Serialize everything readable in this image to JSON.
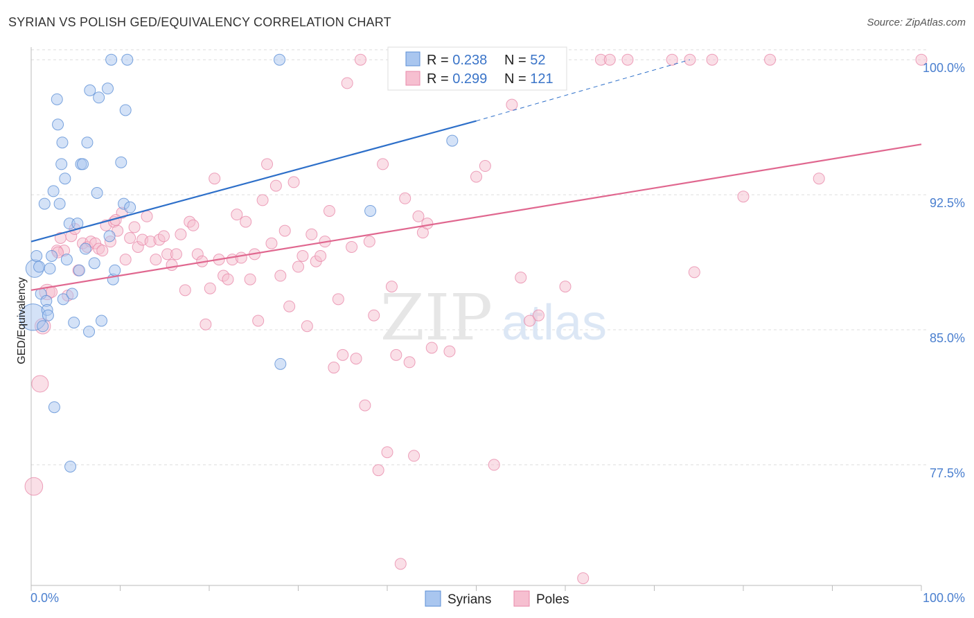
{
  "title": "SYRIAN VS POLISH GED/EQUIVALENCY CORRELATION CHART",
  "source": "Source: ZipAtlas.com",
  "watermark": {
    "zip": "ZIP",
    "atlas": "atlas"
  },
  "colors": {
    "syrians_fill": "#a9c6ef",
    "syrians_stroke": "#5b8fd6",
    "syrians_line": "#2d6fc9",
    "poles_fill": "#f6bfd0",
    "poles_stroke": "#e88aaa",
    "poles_line": "#e0678f",
    "grid": "#dddddd",
    "tick_label": "#4a7fcf"
  },
  "legend": {
    "rows": [
      {
        "r_label": "R = ",
        "r_value": "0.238",
        "n_label": "N = ",
        "n_value": "52"
      },
      {
        "r_label": "R = ",
        "r_value": "0.299",
        "n_label": "N = ",
        "n_value": "121"
      }
    ]
  },
  "bottom_legend": [
    "Syrians",
    "Poles"
  ],
  "chart_data": {
    "type": "scatter",
    "title": "SYRIAN VS POLISH GED/EQUIVALENCY CORRELATION CHART",
    "xlabel": "",
    "ylabel": "GED/Equivalency",
    "xlim": [
      0,
      100
    ],
    "ylim": [
      70.8,
      100.7
    ],
    "x_tick_labels": [
      "0.0%",
      "100.0%"
    ],
    "y_ticks": [
      77.5,
      85.0,
      92.5,
      100.0
    ],
    "y_tick_labels": [
      "77.5%",
      "85.0%",
      "92.5%",
      "100.0%"
    ],
    "grid": true,
    "legend_position": "top-center",
    "series": [
      {
        "name": "Syrians",
        "R": 0.238,
        "N": 52,
        "trend": {
          "x0": 0,
          "y0": 89.9,
          "x1": 50,
          "y1": 96.6,
          "dashed_to_x": 74,
          "dashed_to_y": 100.0
        },
        "points": [
          [
            0.2,
            85.7,
            2.4
          ],
          [
            0.4,
            88.4,
            1.6
          ],
          [
            0.6,
            89.1,
            1.0
          ],
          [
            0.9,
            88.5,
            1.0
          ],
          [
            1.1,
            87.0,
            1.0
          ],
          [
            1.3,
            85.2,
            1.0
          ],
          [
            1.5,
            92.0,
            1.0
          ],
          [
            1.7,
            86.6,
            1.0
          ],
          [
            1.8,
            86.1,
            1.0
          ],
          [
            2.1,
            88.4,
            1.0
          ],
          [
            2.3,
            89.1,
            1.0
          ],
          [
            2.5,
            92.7,
            1.0
          ],
          [
            2.6,
            80.7,
            1.0
          ],
          [
            2.9,
            97.8,
            1.0
          ],
          [
            3.0,
            96.4,
            1.0
          ],
          [
            3.2,
            92.0,
            1.0
          ],
          [
            3.4,
            94.2,
            1.0
          ],
          [
            3.5,
            95.4,
            1.0
          ],
          [
            3.6,
            86.7,
            1.0
          ],
          [
            3.8,
            93.4,
            1.0
          ],
          [
            4.0,
            88.9,
            1.0
          ],
          [
            4.3,
            90.9,
            1.0
          ],
          [
            4.4,
            77.4,
            1.0
          ],
          [
            4.6,
            87.0,
            1.0
          ],
          [
            4.8,
            85.4,
            1.0
          ],
          [
            5.2,
            90.9,
            1.0
          ],
          [
            5.4,
            88.3,
            1.0
          ],
          [
            5.6,
            94.2,
            1.0
          ],
          [
            5.8,
            94.2,
            1.0
          ],
          [
            6.1,
            89.5,
            1.0
          ],
          [
            6.3,
            95.4,
            1.0
          ],
          [
            6.5,
            84.9,
            1.0
          ],
          [
            6.6,
            98.3,
            1.0
          ],
          [
            7.1,
            88.7,
            1.0
          ],
          [
            7.4,
            92.6,
            1.0
          ],
          [
            7.6,
            97.9,
            1.0
          ],
          [
            7.9,
            85.5,
            1.0
          ],
          [
            8.6,
            98.4,
            1.0
          ],
          [
            8.8,
            90.2,
            1.0
          ],
          [
            9.0,
            100.0,
            1.0
          ],
          [
            9.2,
            87.8,
            1.0
          ],
          [
            9.4,
            88.3,
            1.0
          ],
          [
            10.1,
            94.3,
            1.0
          ],
          [
            10.4,
            92.0,
            1.0
          ],
          [
            10.6,
            97.2,
            1.0
          ],
          [
            10.8,
            100.0,
            1.0
          ],
          [
            11.1,
            91.8,
            1.0
          ],
          [
            27.9,
            100.0,
            1.0
          ],
          [
            28.0,
            83.1,
            1.0
          ],
          [
            38.1,
            91.6,
            1.0
          ],
          [
            47.3,
            95.5,
            1.0
          ],
          [
            1.9,
            85.8,
            1.0
          ]
        ]
      },
      {
        "name": "Poles",
        "R": 0.299,
        "N": 121,
        "trend": {
          "x0": 0,
          "y0": 87.2,
          "x1": 100,
          "y1": 95.3
        },
        "points": [
          [
            0.3,
            76.3,
            1.6
          ],
          [
            1.0,
            82.0,
            1.5
          ],
          [
            1.3,
            85.2,
            1.4
          ],
          [
            1.8,
            87.1,
            1.4
          ],
          [
            2.3,
            87.1,
            1.0
          ],
          [
            2.9,
            89.4,
            1.0
          ],
          [
            3.3,
            90.1,
            1.0
          ],
          [
            3.7,
            89.4,
            1.0
          ],
          [
            4.1,
            86.9,
            1.0
          ],
          [
            4.5,
            90.2,
            1.0
          ],
          [
            4.9,
            90.6,
            1.0
          ],
          [
            5.3,
            88.3,
            1.0
          ],
          [
            5.8,
            89.8,
            1.0
          ],
          [
            6.3,
            89.6,
            1.0
          ],
          [
            6.7,
            89.9,
            1.0
          ],
          [
            7.2,
            89.8,
            1.0
          ],
          [
            7.6,
            89.5,
            1.0
          ],
          [
            8.0,
            89.4,
            1.0
          ],
          [
            8.4,
            90.8,
            1.0
          ],
          [
            8.9,
            89.9,
            1.0
          ],
          [
            9.3,
            91.0,
            1.0
          ],
          [
            9.7,
            90.5,
            1.0
          ],
          [
            10.2,
            91.5,
            1.0
          ],
          [
            10.6,
            88.9,
            1.0
          ],
          [
            11.1,
            90.1,
            1.0
          ],
          [
            11.6,
            90.7,
            1.0
          ],
          [
            12.0,
            89.6,
            1.0
          ],
          [
            12.5,
            90.0,
            1.0
          ],
          [
            13.0,
            91.3,
            1.0
          ],
          [
            13.4,
            89.9,
            1.0
          ],
          [
            14.0,
            88.9,
            1.0
          ],
          [
            14.4,
            90.0,
            1.0
          ],
          [
            14.9,
            90.2,
            1.0
          ],
          [
            15.3,
            89.2,
            1.0
          ],
          [
            15.8,
            88.6,
            1.0
          ],
          [
            16.3,
            89.2,
            1.0
          ],
          [
            16.8,
            90.3,
            1.0
          ],
          [
            17.3,
            87.2,
            1.0
          ],
          [
            17.8,
            91.0,
            1.0
          ],
          [
            18.2,
            90.8,
            1.0
          ],
          [
            18.7,
            89.2,
            1.0
          ],
          [
            19.2,
            88.8,
            1.0
          ],
          [
            19.6,
            85.3,
            1.0
          ],
          [
            20.1,
            87.3,
            1.0
          ],
          [
            20.6,
            93.4,
            1.0
          ],
          [
            21.1,
            88.9,
            1.0
          ],
          [
            21.6,
            88.0,
            1.0
          ],
          [
            22.1,
            87.8,
            1.0
          ],
          [
            22.6,
            88.9,
            1.0
          ],
          [
            23.1,
            91.4,
            1.0
          ],
          [
            23.6,
            89.0,
            1.0
          ],
          [
            24.1,
            91.0,
            1.0
          ],
          [
            24.6,
            87.8,
            1.0
          ],
          [
            25.1,
            89.2,
            1.0
          ],
          [
            25.5,
            85.5,
            1.0
          ],
          [
            26.0,
            92.2,
            1.0
          ],
          [
            26.5,
            94.2,
            1.0
          ],
          [
            27.0,
            89.8,
            1.0
          ],
          [
            27.5,
            93.0,
            1.0
          ],
          [
            28.0,
            88.0,
            1.0
          ],
          [
            28.5,
            90.5,
            1.0
          ],
          [
            29.0,
            86.3,
            1.0
          ],
          [
            29.5,
            93.2,
            1.0
          ],
          [
            30.0,
            88.5,
            1.0
          ],
          [
            30.5,
            89.1,
            1.0
          ],
          [
            31.0,
            85.2,
            1.0
          ],
          [
            31.5,
            90.3,
            1.0
          ],
          [
            32.0,
            88.8,
            1.0
          ],
          [
            32.5,
            89.1,
            1.0
          ],
          [
            33.0,
            89.9,
            1.0
          ],
          [
            33.5,
            91.6,
            1.0
          ],
          [
            34.0,
            82.9,
            1.0
          ],
          [
            34.5,
            86.7,
            1.0
          ],
          [
            35.0,
            83.6,
            1.0
          ],
          [
            35.5,
            98.7,
            1.0
          ],
          [
            36.0,
            89.6,
            1.0
          ],
          [
            36.5,
            83.4,
            1.0
          ],
          [
            37.0,
            100.0,
            1.0
          ],
          [
            37.5,
            80.8,
            1.0
          ],
          [
            38.0,
            89.9,
            1.0
          ],
          [
            38.5,
            85.8,
            1.0
          ],
          [
            39.0,
            77.2,
            1.0
          ],
          [
            39.5,
            94.2,
            1.0
          ],
          [
            40.0,
            78.2,
            1.0
          ],
          [
            40.5,
            87.4,
            1.0
          ],
          [
            41.0,
            83.6,
            1.0
          ],
          [
            41.5,
            72.0,
            1.0
          ],
          [
            42.0,
            92.3,
            1.0
          ],
          [
            42.5,
            83.2,
            1.0
          ],
          [
            43.0,
            78.0,
            1.0
          ],
          [
            43.5,
            91.3,
            1.0
          ],
          [
            44.0,
            90.4,
            1.0
          ],
          [
            44.5,
            90.9,
            1.0
          ],
          [
            45.0,
            84.0,
            1.0
          ],
          [
            47.0,
            83.8,
            1.0
          ],
          [
            47.5,
            100.0,
            1.0
          ],
          [
            48.0,
            100.0,
            1.0
          ],
          [
            50.0,
            93.5,
            1.0
          ],
          [
            51.0,
            94.1,
            1.0
          ],
          [
            52.0,
            77.5,
            1.0
          ],
          [
            53.0,
            100.0,
            1.0
          ],
          [
            54.0,
            97.5,
            1.0
          ],
          [
            55.0,
            87.9,
            1.0
          ],
          [
            56.0,
            85.5,
            1.0
          ],
          [
            57.0,
            85.8,
            1.0
          ],
          [
            58.0,
            100.0,
            1.0
          ],
          [
            60.0,
            87.4,
            1.0
          ],
          [
            62.0,
            71.2,
            1.0
          ],
          [
            64.0,
            100.0,
            1.0
          ],
          [
            65.0,
            100.0,
            1.0
          ],
          [
            67.0,
            100.0,
            1.0
          ],
          [
            72.0,
            100.0,
            1.0
          ],
          [
            74.0,
            100.0,
            1.0
          ],
          [
            74.5,
            88.2,
            1.0
          ],
          [
            76.5,
            100.0,
            1.0
          ],
          [
            80.0,
            92.4,
            1.0
          ],
          [
            83.0,
            100.0,
            1.0
          ],
          [
            88.5,
            93.4,
            1.0
          ],
          [
            100.0,
            100.0,
            1.0
          ],
          [
            3.0,
            89.3,
            1.0
          ],
          [
            9.5,
            91.1,
            1.0
          ]
        ]
      }
    ]
  }
}
